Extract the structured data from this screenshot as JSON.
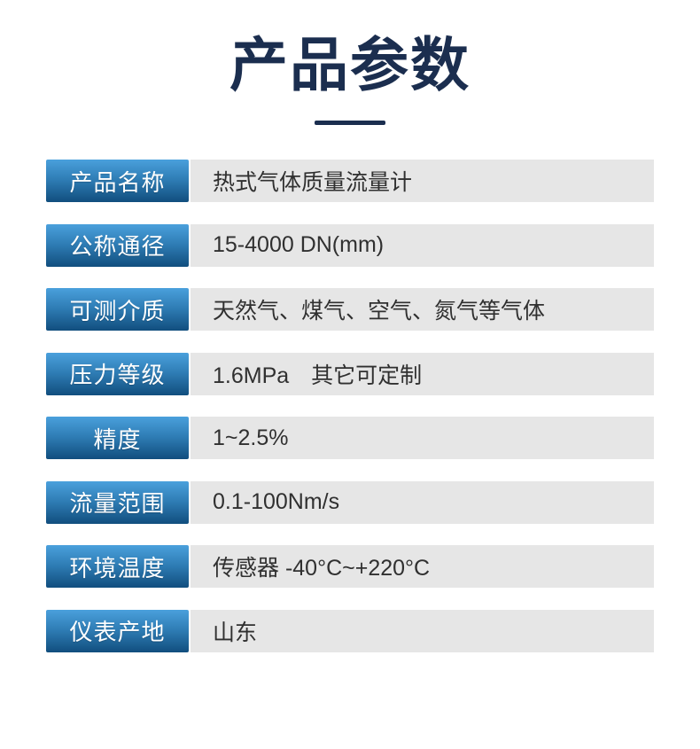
{
  "page": {
    "title": "产品参数"
  },
  "colors": {
    "title_color": "#1b2e4f",
    "label_gradient_top": "#4aa0dc",
    "label_gradient_bottom": "#114e7e",
    "row_background": "#e6e6e6",
    "value_text": "#303030",
    "label_text": "#ffffff"
  },
  "table": {
    "rows": [
      {
        "label": "产品名称",
        "value": "热式气体质量流量计"
      },
      {
        "label": "公称通径",
        "value": "15-4000 DN(mm)"
      },
      {
        "label": "可测介质",
        "value": "天然气、煤气、空气、氮气等气体"
      },
      {
        "label": "压力等级",
        "value": "1.6MPa　其它可定制"
      },
      {
        "label": "精度",
        "value": "1~2.5%"
      },
      {
        "label": "流量范围",
        "value": "0.1-100Nm/s"
      },
      {
        "label": "环境温度",
        "value": "传感器 -40°C~+220°C"
      },
      {
        "label": "仪表产地",
        "value": "山东"
      }
    ]
  }
}
